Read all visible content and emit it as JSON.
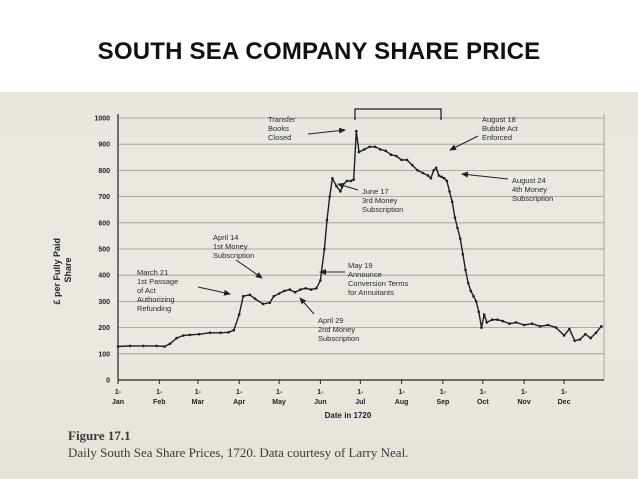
{
  "slide_title": "SOUTH SEA COMPANY SHARE PRICE",
  "colors": {
    "ink": "#222222",
    "paper": "#e9e6df",
    "title": "#111111"
  },
  "caption": {
    "figure": "Figure 17.1",
    "text": "Daily South Sea Share Prices, 1720. Data courtesy of Larry Neal."
  },
  "chart_data": {
    "type": "line",
    "title": "",
    "xlabel": "Date in 1720",
    "ylabel": "£ per Fully Paid Share",
    "ylim": [
      0,
      1000
    ],
    "y_ticks": [
      0,
      100,
      200,
      300,
      400,
      500,
      600,
      700,
      800,
      900,
      1000
    ],
    "y_tick_labels": [
      "0",
      "100",
      "200",
      "300",
      "400",
      "500",
      "600",
      "700",
      "800",
      "900",
      "1000"
    ],
    "x_ticks": [
      {
        "top": "1-",
        "bottom": "Jan",
        "day": 1
      },
      {
        "top": "1-",
        "bottom": "Feb",
        "day": 32
      },
      {
        "top": "1-",
        "bottom": "Mar",
        "day": 61
      },
      {
        "top": "1-",
        "bottom": "Apr",
        "day": 92
      },
      {
        "top": "1-",
        "bottom": "May",
        "day": 122
      },
      {
        "top": "1-",
        "bottom": "Jun",
        "day": 153
      },
      {
        "top": "1-",
        "bottom": "Jul",
        "day": 183
      },
      {
        "top": "1-",
        "bottom": "Aug",
        "day": 214
      },
      {
        "top": "1-",
        "bottom": "Sep",
        "day": 245
      },
      {
        "top": "1-",
        "bottom": "Oct",
        "day": 275
      },
      {
        "top": "1-",
        "bottom": "Nov",
        "day": 306
      },
      {
        "top": "1-",
        "bottom": "Dec",
        "day": 336
      }
    ],
    "grid": true,
    "series": [
      {
        "name": "",
        "points": [
          [
            1,
            128
          ],
          [
            10,
            130
          ],
          [
            20,
            130
          ],
          [
            30,
            130
          ],
          [
            36,
            128
          ],
          [
            40,
            138
          ],
          [
            45,
            160
          ],
          [
            50,
            170
          ],
          [
            55,
            172
          ],
          [
            62,
            175
          ],
          [
            70,
            180
          ],
          [
            78,
            180
          ],
          [
            84,
            182
          ],
          [
            88,
            190
          ],
          [
            92,
            250
          ],
          [
            95,
            320
          ],
          [
            100,
            325
          ],
          [
            104,
            310
          ],
          [
            110,
            290
          ],
          [
            115,
            295
          ],
          [
            118,
            320
          ],
          [
            122,
            330
          ],
          [
            126,
            340
          ],
          [
            130,
            345
          ],
          [
            134,
            335
          ],
          [
            138,
            345
          ],
          [
            142,
            350
          ],
          [
            146,
            345
          ],
          [
            150,
            350
          ],
          [
            153,
            380
          ],
          [
            156,
            500
          ],
          [
            158,
            610
          ],
          [
            160,
            700
          ],
          [
            162,
            770
          ],
          [
            165,
            740
          ],
          [
            168,
            720
          ],
          [
            170,
            745
          ],
          [
            173,
            760
          ],
          [
            176,
            760
          ],
          [
            178,
            765
          ],
          [
            180,
            950
          ],
          [
            182,
            870
          ],
          [
            186,
            880
          ],
          [
            190,
            890
          ],
          [
            194,
            890
          ],
          [
            198,
            880
          ],
          [
            202,
            875
          ],
          [
            206,
            860
          ],
          [
            210,
            855
          ],
          [
            214,
            840
          ],
          [
            218,
            840
          ],
          [
            222,
            820
          ],
          [
            226,
            800
          ],
          [
            230,
            790
          ],
          [
            234,
            780
          ],
          [
            236,
            770
          ],
          [
            238,
            800
          ],
          [
            240,
            810
          ],
          [
            242,
            780
          ],
          [
            244,
            775
          ],
          [
            246,
            770
          ],
          [
            248,
            760
          ],
          [
            250,
            720
          ],
          [
            252,
            680
          ],
          [
            254,
            620
          ],
          [
            256,
            580
          ],
          [
            258,
            540
          ],
          [
            260,
            480
          ],
          [
            262,
            420
          ],
          [
            264,
            370
          ],
          [
            266,
            340
          ],
          [
            268,
            320
          ],
          [
            270,
            300
          ],
          [
            272,
            260
          ],
          [
            274,
            200
          ],
          [
            276,
            250
          ],
          [
            278,
            220
          ],
          [
            282,
            230
          ],
          [
            286,
            230
          ],
          [
            290,
            225
          ],
          [
            295,
            215
          ],
          [
            300,
            220
          ],
          [
            306,
            210
          ],
          [
            312,
            215
          ],
          [
            318,
            205
          ],
          [
            324,
            210
          ],
          [
            330,
            200
          ],
          [
            336,
            170
          ],
          [
            340,
            195
          ],
          [
            344,
            150
          ],
          [
            348,
            155
          ],
          [
            352,
            175
          ],
          [
            356,
            160
          ],
          [
            360,
            180
          ],
          [
            364,
            205
          ]
        ]
      }
    ],
    "annotations": [
      {
        "lines": [
          "March 21",
          "1st Passage",
          "of Act",
          "Authorizing",
          "Refunding"
        ]
      },
      {
        "lines": [
          "April 14",
          "1st Money",
          "Subscription"
        ]
      },
      {
        "lines": [
          "April 29",
          "2nd Money",
          "Subscription"
        ]
      },
      {
        "lines": [
          "May 19",
          "Announce",
          "Conversion Terms",
          "for Annuitants"
        ]
      },
      {
        "lines": [
          "June 17",
          "3rd Money",
          "Subscription"
        ]
      },
      {
        "lines": [
          "Transfer",
          "Books",
          "Closed"
        ]
      },
      {
        "lines": [
          "August 18",
          "Bubble Act",
          "Enforced"
        ]
      },
      {
        "lines": [
          "August 24",
          "4th Money",
          "Subscription"
        ]
      }
    ]
  }
}
